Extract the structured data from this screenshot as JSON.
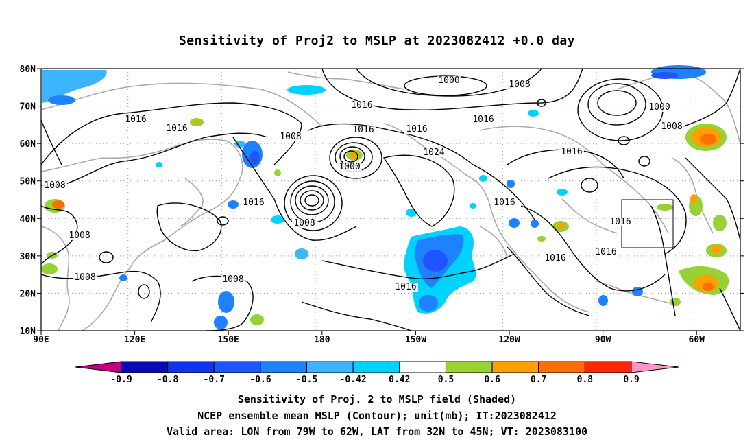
{
  "title": "Sensitivity of Proj2 to MSLP at 2023082412 +0.0 day",
  "axes": {
    "lat_labels": [
      "80N",
      "70N",
      "60N",
      "50N",
      "40N",
      "30N",
      "20N",
      "10N"
    ],
    "lon_labels": [
      "90E",
      "120E",
      "150E",
      "180",
      "150W",
      "120W",
      "90W",
      "60W"
    ]
  },
  "colorbar": {
    "levels": [
      "-0.9",
      "-0.8",
      "-0.7",
      "-0.6",
      "-0.5",
      "-0.42",
      "0.42",
      "0.5",
      "0.6",
      "0.7",
      "0.8",
      "0.9"
    ],
    "colors": [
      "#c0007f",
      "#0a0ab4",
      "#1432e6",
      "#1e55ff",
      "#1e82ff",
      "#3cb4ff",
      "#00d2ff",
      "#ffffff",
      "#96d232",
      "#ffa000",
      "#ff6e00",
      "#ff2800",
      "#ff0000",
      "#ff96c8"
    ]
  },
  "contours": [
    {
      "text": "1000"
    },
    {
      "text": "1008"
    },
    {
      "text": "1016"
    },
    {
      "text": "1016"
    },
    {
      "text": "1000"
    },
    {
      "text": "1016"
    },
    {
      "text": "1016"
    },
    {
      "text": "1016"
    },
    {
      "text": "1008"
    },
    {
      "text": "1016"
    },
    {
      "text": "1008"
    },
    {
      "text": "1016"
    },
    {
      "text": "1000"
    },
    {
      "text": "1024"
    },
    {
      "text": "1016"
    },
    {
      "text": "1016"
    },
    {
      "text": "1008"
    },
    {
      "text": "1016"
    },
    {
      "text": "1008"
    },
    {
      "text": "1008"
    },
    {
      "text": "1008"
    },
    {
      "text": "1008"
    },
    {
      "text": "1016"
    },
    {
      "text": "1016"
    },
    {
      "text": "1016"
    }
  ],
  "captions": {
    "line1": "Sensitivity of Proj. 2 to MSLP field (Shaded)",
    "line2": "NCEP ensemble mean MSLP (Contour); unit(mb); IT:2023082412",
    "line3": "Valid area: LON from 79W to 62W, LAT from 32N to 45N; VT: 2023083100"
  }
}
